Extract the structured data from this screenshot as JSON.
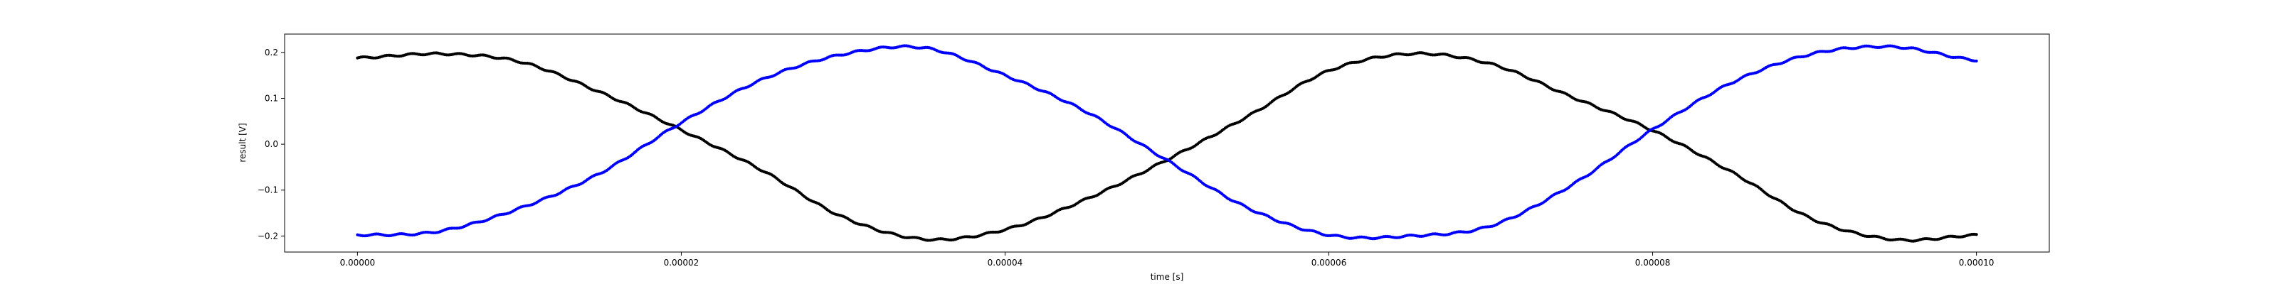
{
  "chart_data": {
    "type": "scatter",
    "title": "",
    "xlabel": "time [s]",
    "ylabel": "result [V]",
    "xlim": [
      -4.5e-06,
      0.0001045
    ],
    "ylim": [
      -0.235,
      0.24
    ],
    "xticks": [
      0,
      2e-05,
      4e-05,
      6e-05,
      8e-05,
      0.0001
    ],
    "xtick_labels": [
      "0.00000",
      "0.00002",
      "0.00004",
      "0.00006",
      "0.00008",
      "0.00010"
    ],
    "yticks": [
      -0.2,
      -0.1,
      0.0,
      0.1,
      0.2
    ],
    "ytick_labels": [
      "−0.2",
      "−0.1",
      "0.0",
      "0.1",
      "0.2"
    ],
    "grid": false,
    "legend": "none",
    "series": [
      {
        "color": "#000000",
        "points": [
          [
            0.0,
            0.188
          ],
          [
            5e-06,
            0.197
          ],
          [
            1e-05,
            0.18
          ],
          [
            1.5e-05,
            0.113
          ],
          [
            2e-05,
            0.031
          ],
          [
            2.5e-05,
            -0.057
          ],
          [
            3e-05,
            -0.159
          ],
          [
            3.5e-05,
            -0.207
          ],
          [
            4e-05,
            -0.186
          ],
          [
            4.5e-05,
            -0.12
          ],
          [
            5e-05,
            -0.034
          ],
          [
            5.5e-05,
            0.061
          ],
          [
            6e-05,
            0.16
          ],
          [
            6.5e-05,
            0.197
          ],
          [
            7e-05,
            0.175
          ],
          [
            7.5e-05,
            0.103
          ],
          [
            8e-05,
            0.03
          ],
          [
            8.5e-05,
            -0.063
          ],
          [
            9e-05,
            -0.165
          ],
          [
            9.5e-05,
            -0.208
          ],
          [
            0.0001,
            -0.198
          ]
        ]
      },
      {
        "color": "#0000ff",
        "points": [
          [
            0.0,
            -0.198
          ],
          [
            5e-06,
            -0.19
          ],
          [
            1e-05,
            -0.14
          ],
          [
            1.5e-05,
            -0.063
          ],
          [
            2e-05,
            0.047
          ],
          [
            2.5e-05,
            0.141
          ],
          [
            3e-05,
            0.196
          ],
          [
            3.5e-05,
            0.21
          ],
          [
            4e-05,
            0.15
          ],
          [
            4.5e-05,
            0.071
          ],
          [
            5e-05,
            -0.035
          ],
          [
            5.5e-05,
            -0.139
          ],
          [
            6e-05,
            -0.198
          ],
          [
            6.5e-05,
            -0.2
          ],
          [
            7e-05,
            -0.178
          ],
          [
            7.5e-05,
            -0.089
          ],
          [
            8e-05,
            0.032
          ],
          [
            8.5e-05,
            0.136
          ],
          [
            9e-05,
            0.198
          ],
          [
            9.5e-05,
            0.212
          ],
          [
            0.0001,
            0.183
          ]
        ]
      }
    ]
  }
}
